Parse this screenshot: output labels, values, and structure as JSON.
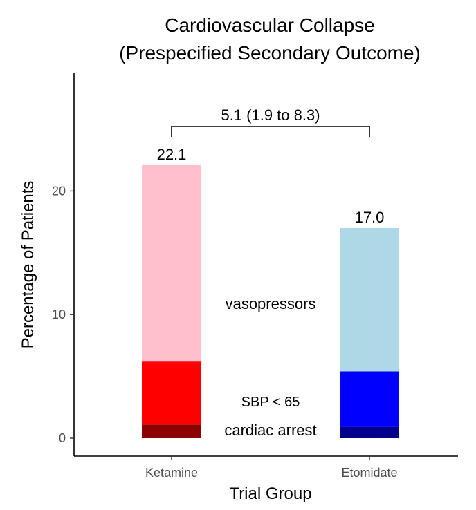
{
  "chart_data": {
    "type": "bar",
    "title_line1": "Cardiovascular Collapse",
    "title_line2": "(Prespecified Secondary Outcome)",
    "xlabel": "Trial Group",
    "ylabel": "Percentage of Patients",
    "ylim": [
      0,
      29
    ],
    "yticks": [
      0,
      10,
      20
    ],
    "categories": [
      "Ketamine",
      "Etomidate"
    ],
    "totals": [
      22.1,
      17.0
    ],
    "total_labels": [
      "22.1",
      "17.0"
    ],
    "series": [
      {
        "name": "cardiac arrest",
        "values": [
          1.1,
          0.9
        ],
        "colors": [
          "#8b0000",
          "#00008b"
        ]
      },
      {
        "name": "SBP < 65",
        "values": [
          5.1,
          4.5
        ],
        "colors": [
          "#ff0000",
          "#0000ff"
        ]
      },
      {
        "name": "vasopressors",
        "values": [
          15.9,
          11.6
        ],
        "colors": [
          "#ffc0cb",
          "#add8e6"
        ]
      }
    ],
    "annotations": {
      "difference": "5.1 (1.9 to 8.3)",
      "vasopressors": "vasopressors",
      "sbp": "SBP < 65",
      "cardiac_arrest": "cardiac arrest"
    }
  }
}
